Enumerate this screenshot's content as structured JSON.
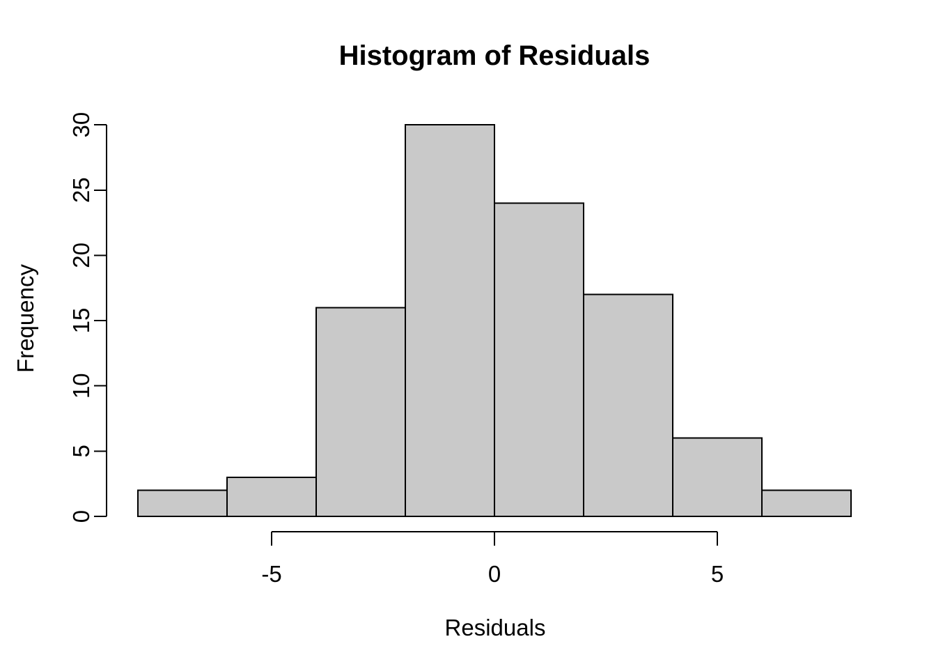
{
  "figure": {
    "background": "#FFFFFF"
  },
  "chart_data": {
    "type": "bar",
    "subtype": "histogram",
    "title": "Histogram of Residuals",
    "xlabel": "Residuals",
    "ylabel": "Frequency",
    "bin_edges": [
      -8,
      -6,
      -4,
      -2,
      0,
      2,
      4,
      6,
      8
    ],
    "counts": [
      2,
      3,
      16,
      30,
      24,
      17,
      6,
      2
    ],
    "x_ticks": [
      -5,
      0,
      5
    ],
    "y_ticks": [
      0,
      5,
      10,
      15,
      20,
      25,
      30
    ],
    "xlim": [
      -8,
      8
    ],
    "ylim": [
      0,
      30
    ],
    "grid": false,
    "legend": false,
    "bar_fill": "#C9C9C9",
    "bar_stroke": "#000000",
    "axis_color": "#000000",
    "text_color": "#000000"
  }
}
